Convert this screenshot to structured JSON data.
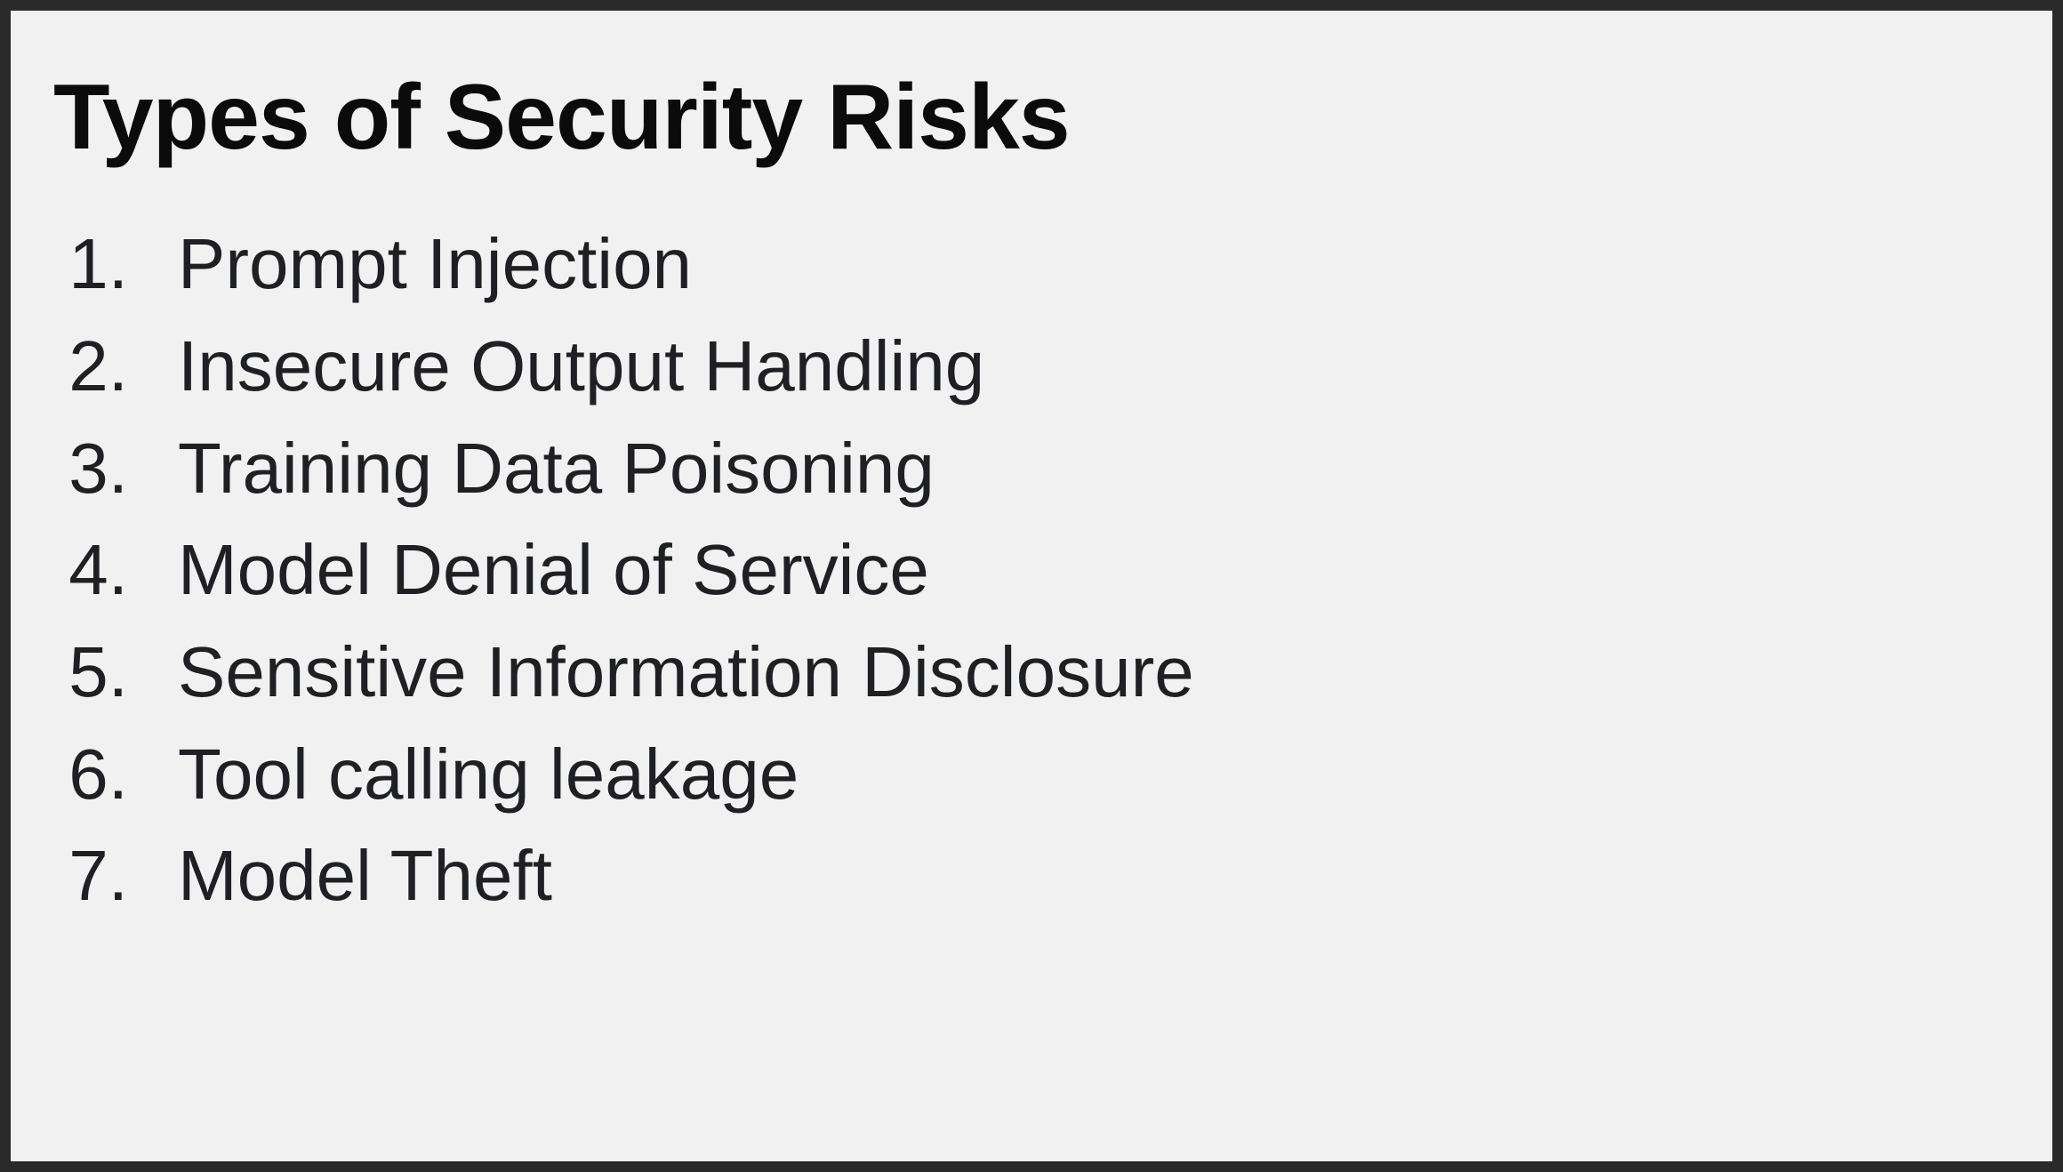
{
  "slide": {
    "title": "Types of Security Risks",
    "items": [
      {
        "number": "1.",
        "label": "Prompt Injection"
      },
      {
        "number": "2.",
        "label": "Insecure Output Handling"
      },
      {
        "number": "3.",
        "label": "Training Data Poisoning"
      },
      {
        "number": "4.",
        "label": "Model Denial of Service"
      },
      {
        "number": "5.",
        "label": "Sensitive Information Disclosure"
      },
      {
        "number": "6.",
        "label": "Tool calling leakage"
      },
      {
        "number": "7.",
        "label": "Model Theft"
      }
    ]
  }
}
